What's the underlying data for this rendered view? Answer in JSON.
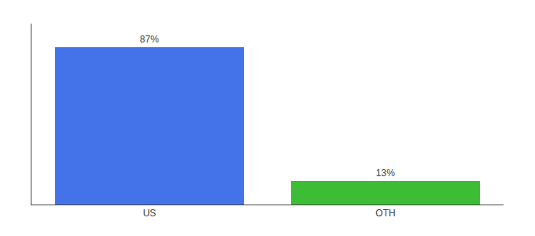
{
  "chart_data": {
    "type": "bar",
    "categories": [
      "US",
      "OTH"
    ],
    "values": [
      87,
      13
    ],
    "value_labels": [
      "87%",
      "13%"
    ],
    "data_labels": true,
    "colors": [
      "#4472e8",
      "#3dbc35"
    ],
    "ylim": [
      0,
      100
    ],
    "grid": false,
    "tick_labels": "x"
  }
}
